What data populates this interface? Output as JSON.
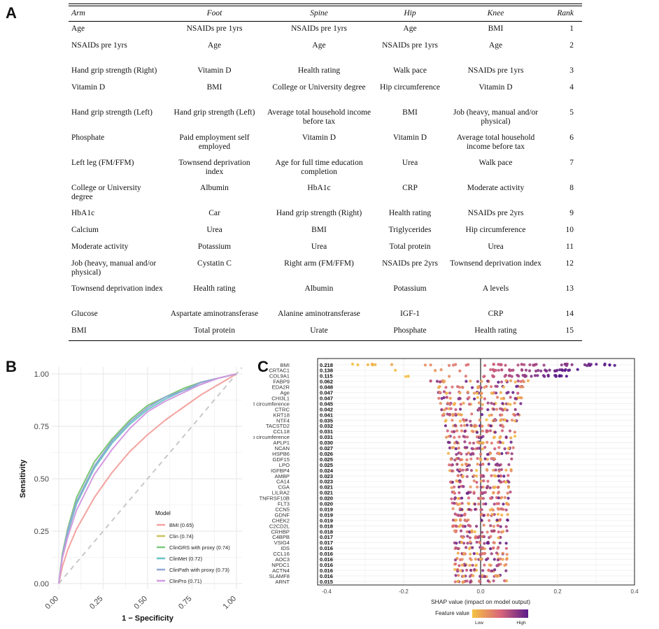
{
  "panels": {
    "a": "A",
    "b": "B",
    "c": "C"
  },
  "table": {
    "headers": [
      "Arm",
      "Foot",
      "Spine",
      "Hip",
      "Knee",
      "Rank"
    ],
    "rows": [
      [
        "Age",
        "NSAIDs pre 1yrs",
        "NSAIDs pre 1yrs",
        "Age",
        "BMI",
        "1"
      ],
      [
        "NSAIDs pre 1yrs",
        "Age",
        "Age",
        "NSAIDs pre 1yrs",
        "Age",
        "2"
      ],
      [
        "Hand grip strength (Right)",
        "Vitamin D",
        "Health rating",
        "Walk pace",
        "NSAIDs pre 1yrs",
        "3"
      ],
      [
        "Vitamin D",
        "BMI",
        "College or University degree",
        "Hip circumference",
        "Vitamin D",
        "4"
      ],
      [
        "Hand grip strength (Left)",
        "Hand grip strength (Left)",
        "Average total household income before tax",
        "BMI",
        "Job (heavy, manual and/or physical)",
        "5"
      ],
      [
        "Phosphate",
        "Paid employment self employed",
        "Vitamin D",
        "Vitamin D",
        "Average total household income before tax",
        "6"
      ],
      [
        "Left leg (FM/FFM)",
        "Townsend deprivation index",
        "Age for full time education completion",
        "Urea",
        "Walk pace",
        "7"
      ],
      [
        "College or University degree",
        "Albumin",
        "HbA1c",
        "CRP",
        "Moderate activity",
        "8"
      ],
      [
        "HbA1c",
        "Car",
        "Hand grip strength (Right)",
        "Health rating",
        "NSAIDs pre 2yrs",
        "9"
      ],
      [
        "Calcium",
        "Urea",
        "BMI",
        "Triglycerides",
        "Hip circumference",
        "10"
      ],
      [
        "Moderate activity",
        "Potassium",
        "Urea",
        "Total protein",
        "Urea",
        "11"
      ],
      [
        "Job (heavy, manual and/or physical)",
        "Cystatin C",
        "Right arm (FM/FFM)",
        "NSAIDs pre 2yrs",
        "Townsend deprivation index",
        "12"
      ],
      [
        "Townsend deprivation index",
        "Health rating",
        "Albumin",
        "Potassium",
        "A levels",
        "13"
      ],
      [
        "Glucose",
        "Aspartate aminotransferase",
        "Alanine aminotransferase",
        "IGF-1",
        "CRP",
        "14"
      ],
      [
        "BMI",
        "Total protein",
        "Urate",
        "Phosphate",
        "Health rating",
        "15"
      ]
    ]
  },
  "chart_data": [
    {
      "type": "line",
      "title": "",
      "xlabel": "1 − Specificity",
      "ylabel": "Sensitivity",
      "xlim": [
        0,
        1
      ],
      "ylim": [
        0,
        1
      ],
      "xticks": [
        "0.00",
        "0.25",
        "0.50",
        "0.75",
        "1.00"
      ],
      "yticks": [
        "0.00",
        "0.25",
        "0.50",
        "0.75",
        "1.00"
      ],
      "legend_title": "Model",
      "legend_position": "bottom-right",
      "series": [
        {
          "name": "BMI (0.65)",
          "color": "#f4a3a0",
          "points": [
            [
              0,
              0
            ],
            [
              0.02,
              0.08
            ],
            [
              0.05,
              0.16
            ],
            [
              0.1,
              0.26
            ],
            [
              0.2,
              0.41
            ],
            [
              0.3,
              0.53
            ],
            [
              0.4,
              0.63
            ],
            [
              0.5,
              0.71
            ],
            [
              0.6,
              0.78
            ],
            [
              0.7,
              0.84
            ],
            [
              0.8,
              0.9
            ],
            [
              0.9,
              0.95
            ],
            [
              1,
              1
            ]
          ]
        },
        {
          "name": "Clin (0.74)",
          "color": "#c9c25b",
          "points": [
            [
              0,
              0
            ],
            [
              0.02,
              0.14
            ],
            [
              0.05,
              0.26
            ],
            [
              0.1,
              0.41
            ],
            [
              0.2,
              0.58
            ],
            [
              0.3,
              0.69
            ],
            [
              0.4,
              0.78
            ],
            [
              0.5,
              0.85
            ],
            [
              0.6,
              0.89
            ],
            [
              0.7,
              0.93
            ],
            [
              0.8,
              0.96
            ],
            [
              0.9,
              0.98
            ],
            [
              1,
              1
            ]
          ]
        },
        {
          "name": "ClinGRS with proxy (0.74)",
          "color": "#7fc97f",
          "points": [
            [
              0,
              0
            ],
            [
              0.02,
              0.14
            ],
            [
              0.05,
              0.26
            ],
            [
              0.1,
              0.41
            ],
            [
              0.2,
              0.58
            ],
            [
              0.3,
              0.69
            ],
            [
              0.4,
              0.78
            ],
            [
              0.5,
              0.85
            ],
            [
              0.6,
              0.89
            ],
            [
              0.7,
              0.93
            ],
            [
              0.8,
              0.96
            ],
            [
              0.9,
              0.98
            ],
            [
              1,
              1
            ]
          ]
        },
        {
          "name": "ClinMet (0.72)",
          "color": "#6cc5c8",
          "points": [
            [
              0,
              0
            ],
            [
              0.02,
              0.13
            ],
            [
              0.05,
              0.24
            ],
            [
              0.1,
              0.38
            ],
            [
              0.2,
              0.55
            ],
            [
              0.3,
              0.67
            ],
            [
              0.4,
              0.76
            ],
            [
              0.5,
              0.83
            ],
            [
              0.6,
              0.88
            ],
            [
              0.7,
              0.92
            ],
            [
              0.8,
              0.95
            ],
            [
              0.9,
              0.98
            ],
            [
              1,
              1
            ]
          ]
        },
        {
          "name": "ClinPath with proxy (0.73)",
          "color": "#8fa7d6",
          "points": [
            [
              0,
              0
            ],
            [
              0.02,
              0.13
            ],
            [
              0.05,
              0.25
            ],
            [
              0.1,
              0.39
            ],
            [
              0.2,
              0.56
            ],
            [
              0.3,
              0.68
            ],
            [
              0.4,
              0.77
            ],
            [
              0.5,
              0.84
            ],
            [
              0.6,
              0.89
            ],
            [
              0.7,
              0.92
            ],
            [
              0.8,
              0.96
            ],
            [
              0.9,
              0.98
            ],
            [
              1,
              1
            ]
          ]
        },
        {
          "name": "ClinPro (0.71)",
          "color": "#d49be0",
          "points": [
            [
              0,
              0
            ],
            [
              0.02,
              0.12
            ],
            [
              0.05,
              0.22
            ],
            [
              0.1,
              0.35
            ],
            [
              0.2,
              0.52
            ],
            [
              0.3,
              0.64
            ],
            [
              0.4,
              0.74
            ],
            [
              0.5,
              0.82
            ],
            [
              0.6,
              0.87
            ],
            [
              0.7,
              0.91
            ],
            [
              0.8,
              0.95
            ],
            [
              0.9,
              0.98
            ],
            [
              1,
              1
            ]
          ]
        }
      ]
    },
    {
      "type": "scatter",
      "title": "",
      "xlabel": "SHAP value (impact on model output)",
      "xlim": [
        -0.4,
        0.4
      ],
      "xticks": [
        "-0.4",
        "-0.2",
        "0.0",
        "0.2",
        "0.4"
      ],
      "legend_title": "Feature value",
      "legend_low": "Low",
      "legend_high": "High",
      "features": [
        {
          "name": "BMI",
          "importance": "0.218"
        },
        {
          "name": "CRTAC1",
          "importance": "0.138"
        },
        {
          "name": "COL9A1",
          "importance": "0.115"
        },
        {
          "name": "FABP9",
          "importance": "0.062"
        },
        {
          "name": "EDA2R",
          "importance": "0.048"
        },
        {
          "name": "Age",
          "importance": "0.047"
        },
        {
          "name": "CHI3L1",
          "importance": "0.047"
        },
        {
          "name": "Waist circumference",
          "importance": "0.045"
        },
        {
          "name": "CTRC",
          "importance": "0.042"
        },
        {
          "name": "KRT18",
          "importance": "0.041"
        },
        {
          "name": "NTF4",
          "importance": "0.035"
        },
        {
          "name": "TACSTD2",
          "importance": "0.032"
        },
        {
          "name": "CCL18",
          "importance": "0.031"
        },
        {
          "name": "Hip circumference",
          "importance": "0.031"
        },
        {
          "name": "APLP1",
          "importance": "0.030"
        },
        {
          "name": "NCAN",
          "importance": "0.027"
        },
        {
          "name": "HSPB6",
          "importance": "0.026"
        },
        {
          "name": "GDF15",
          "importance": "0.025"
        },
        {
          "name": "LPO",
          "importance": "0.025"
        },
        {
          "name": "IGFBP4",
          "importance": "0.024"
        },
        {
          "name": "AMBP",
          "importance": "0.023"
        },
        {
          "name": "CA14",
          "importance": "0.023"
        },
        {
          "name": "CGA",
          "importance": "0.021"
        },
        {
          "name": "LILRA2",
          "importance": "0.021"
        },
        {
          "name": "TNFRSF10B",
          "importance": "0.020"
        },
        {
          "name": "FLT3",
          "importance": "0.020"
        },
        {
          "name": "CCN5",
          "importance": "0.019"
        },
        {
          "name": "GDNF",
          "importance": "0.019"
        },
        {
          "name": "CHEK2",
          "importance": "0.019"
        },
        {
          "name": "C2CD2L",
          "importance": "0.018"
        },
        {
          "name": "CRHBP",
          "importance": "0.018"
        },
        {
          "name": "C4BPB",
          "importance": "0.017"
        },
        {
          "name": "VSIG4",
          "importance": "0.017"
        },
        {
          "name": "IDS",
          "importance": "0.016"
        },
        {
          "name": "CCL16",
          "importance": "0.016"
        },
        {
          "name": "AOC3",
          "importance": "0.016"
        },
        {
          "name": "NPDC1",
          "importance": "0.016"
        },
        {
          "name": "ACTN4",
          "importance": "0.016"
        },
        {
          "name": "SLAMF8",
          "importance": "0.016"
        },
        {
          "name": "ARNT",
          "importance": "0.015"
        }
      ],
      "color_scale": {
        "low": "#f5c242",
        "mid": "#d9667a",
        "high": "#5a1b8a"
      }
    }
  ]
}
